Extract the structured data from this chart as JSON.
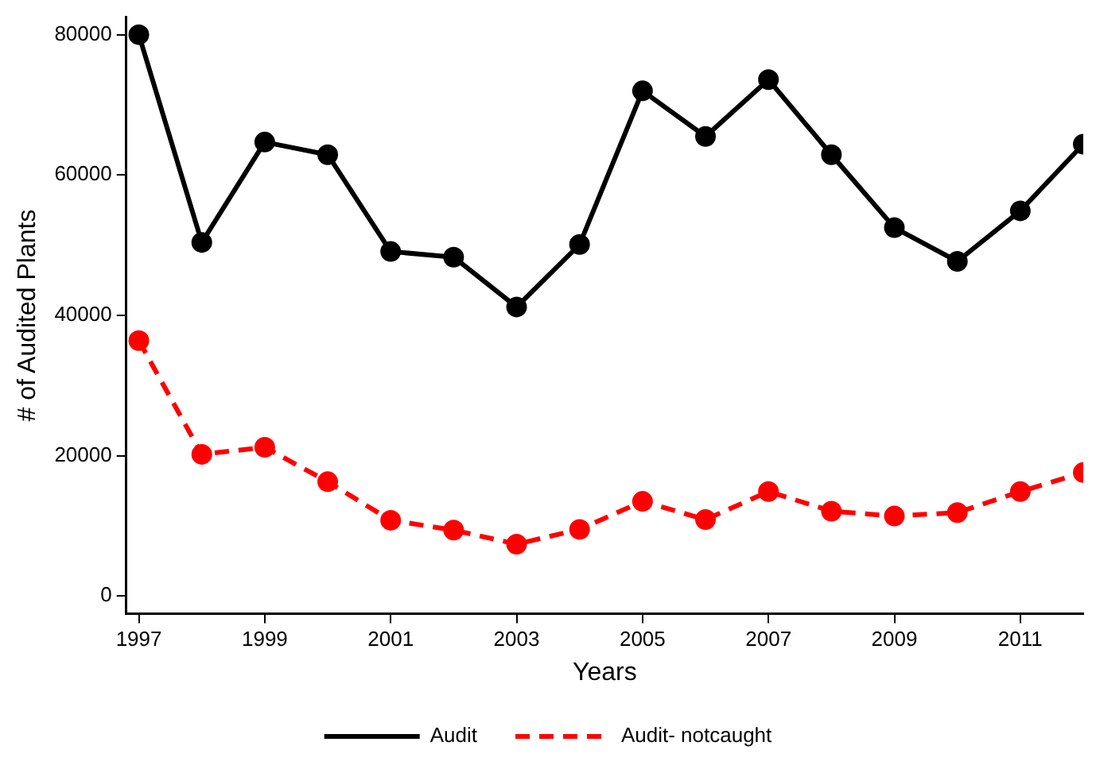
{
  "chart_data": {
    "type": "line",
    "xlabel": "Years",
    "ylabel": "# of Audited Plants",
    "x": [
      1997,
      1998,
      1999,
      2000,
      2001,
      2002,
      2003,
      2004,
      2005,
      2006,
      2007,
      2008,
      2009,
      2010,
      2011,
      2012
    ],
    "series": [
      {
        "name": "Audit",
        "color": "#000000",
        "line_style": "solid",
        "values": [
          80000,
          50400,
          64700,
          62900,
          49100,
          48300,
          41200,
          50100,
          72000,
          65500,
          73600,
          62900,
          52500,
          47700,
          54900,
          64400
        ]
      },
      {
        "name": "Audit- notcaught",
        "color": "#ff0000",
        "line_style": "dashed",
        "values": [
          36400,
          20200,
          21200,
          16300,
          10800,
          9400,
          7400,
          9500,
          13500,
          10900,
          14900,
          12100,
          11400,
          11900,
          14900,
          17600
        ]
      }
    ],
    "xlim": [
      1996.8,
      2012
    ],
    "xticks": [
      1997,
      1999,
      2001,
      2003,
      2005,
      2007,
      2009,
      2011
    ],
    "ylim": [
      -2500,
      82500
    ],
    "yticks": [
      0,
      20000,
      40000,
      60000,
      80000
    ],
    "grid": false,
    "legend": "bottom",
    "marker": "circle"
  }
}
